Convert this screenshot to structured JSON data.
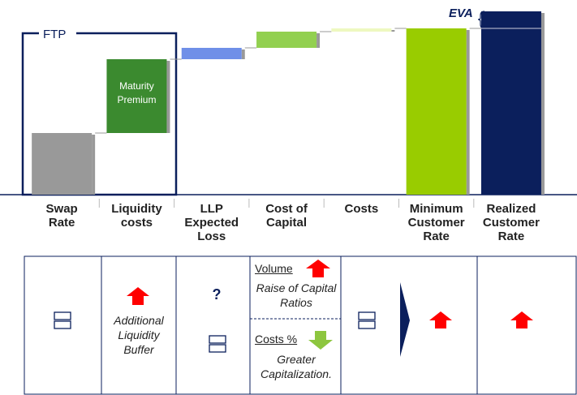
{
  "chart_data": {
    "type": "waterfall",
    "categories": [
      "Swap Rate",
      "Liquidity costs",
      "LLP Expected Loss",
      "Cost of Capital",
      "Costs",
      "Minimum Customer Rate",
      "Realized Customer Rate"
    ],
    "values": [
      76,
      91,
      14,
      20,
      4,
      205,
      226
    ],
    "total": [
      false,
      false,
      false,
      false,
      false,
      true,
      true
    ],
    "colors": [
      "#999999",
      "#3b8a2f",
      "#6f8fe8",
      "#92d050",
      "#eef8c0",
      "#99cc00",
      "#0b1f5c"
    ],
    "segment_label": "Maturity Premium",
    "ftp_label": "FTP",
    "eva_label": "EVA",
    "ylim": [
      0,
      226
    ]
  },
  "table": {
    "buffer": "Additional Liquidity Buffer",
    "llp": "?",
    "volume": {
      "label": "Volume",
      "note": "Raise of Capital Ratios"
    },
    "costs": {
      "label": "Costs %",
      "note": "Greater Capitalization."
    }
  }
}
